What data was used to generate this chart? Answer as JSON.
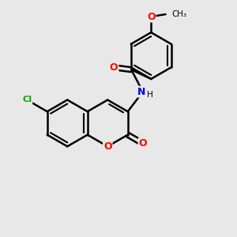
{
  "bg_color": "#e8e8e8",
  "bond_color": "#000000",
  "bond_width": 1.8,
  "atom_colors": {
    "O": "#ff0000",
    "N": "#0000ff",
    "Cl": "#00aa00",
    "C": "#000000"
  },
  "font_size": 9
}
